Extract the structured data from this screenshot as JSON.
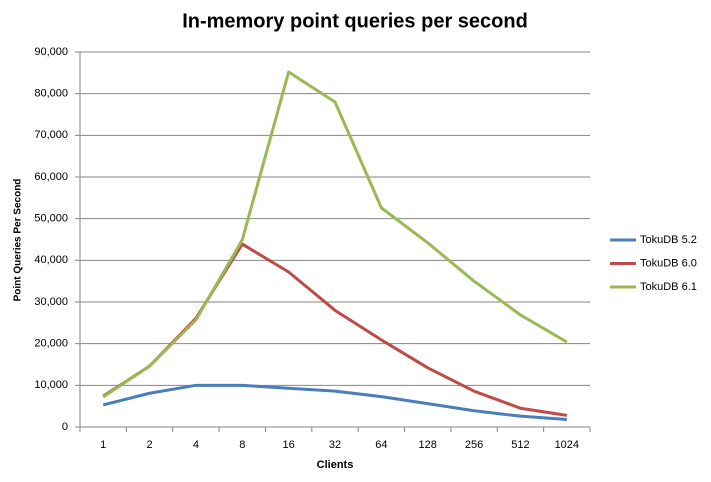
{
  "chart_data": {
    "type": "line",
    "title": "In-memory point queries per second",
    "x_label": "Clients",
    "y_label": "Point Queries Per Second",
    "categories": [
      "1",
      "2",
      "4",
      "8",
      "16",
      "32",
      "64",
      "128",
      "256",
      "512",
      "1024"
    ],
    "series": [
      {
        "name": "TokuDB 5.2",
        "color": "#4a7ebb",
        "values": [
          5300,
          8100,
          10000,
          10000,
          9300,
          8600,
          7300,
          5600,
          3900,
          2600,
          1800
        ]
      },
      {
        "name": "TokuDB 6.0",
        "color": "#be4b48",
        "values": [
          7400,
          14600,
          26100,
          43900,
          37200,
          28000,
          20900,
          14200,
          8600,
          4500,
          2800
        ]
      },
      {
        "name": "TokuDB 6.1",
        "color": "#98b954",
        "values": [
          7200,
          14600,
          25700,
          44900,
          85200,
          78000,
          52600,
          44200,
          35000,
          26900,
          20400
        ]
      }
    ],
    "ylim": [
      0,
      90000
    ],
    "yticks": [
      0,
      {
        "value": 10000,
        "label": "10,000"
      },
      {
        "value": 20000,
        "label": "20,000"
      },
      {
        "value": 30000,
        "label": "30,000"
      },
      {
        "value": 40000,
        "label": "40,000"
      },
      {
        "value": 50000,
        "label": "50,000"
      },
      {
        "value": 60000,
        "label": "60,000"
      },
      {
        "value": 70000,
        "label": "70,000"
      },
      {
        "value": 80000,
        "label": "80,000"
      },
      {
        "value": 90000,
        "label": "90,000"
      }
    ],
    "grid": true,
    "legend": "right"
  }
}
